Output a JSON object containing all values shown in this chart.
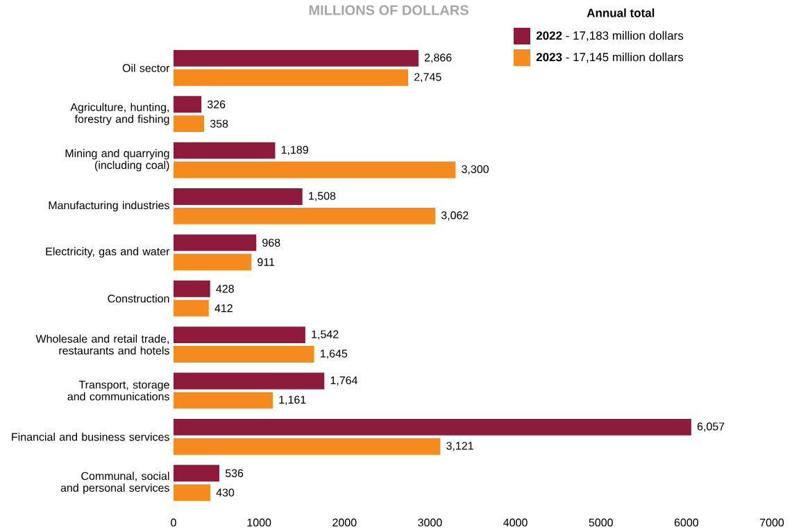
{
  "chart_data": {
    "type": "bar",
    "orientation": "horizontal",
    "title": "MILLIONS OF DOLLARS",
    "legend_title": "Annual total",
    "legend": "top right",
    "categories": [
      "Oil sector",
      "Agriculture, hunting, forestry and fishing",
      "Mining and quarrying (including coal)",
      "Manufacturing industries",
      "Electricity, gas and water",
      "Construction",
      "Wholesale and retail trade, restaurants and hotels",
      "Transport, storage and communications",
      "Financial and business services",
      "Communal, social and personal services"
    ],
    "series": [
      {
        "name": "**2022** - 17,183 million dollars",
        "color": "#8e1b3b",
        "values": [
          2866,
          326,
          1189,
          1508,
          968,
          428,
          1542,
          1764,
          6057,
          536
        ],
        "value_labels": [
          "2,866",
          "326",
          "1,189",
          "1,508",
          "968",
          "428",
          "1,542",
          "1,764",
          "6,057",
          "536"
        ]
      },
      {
        "name": "**2023** - 17,145 million dollars",
        "color": "#f58b1f",
        "values": [
          2745,
          358,
          3300,
          3062,
          911,
          412,
          1645,
          1161,
          3121,
          430
        ],
        "value_labels": [
          "2,745",
          "358",
          "3,300",
          "3,062",
          "911",
          "412",
          "1,645",
          "1,161",
          "3,121",
          "430"
        ]
      }
    ],
    "xlim": [
      0,
      7000
    ],
    "xticks": [
      0,
      1000,
      2000,
      3000,
      4000,
      5000,
      6000,
      7000
    ]
  }
}
